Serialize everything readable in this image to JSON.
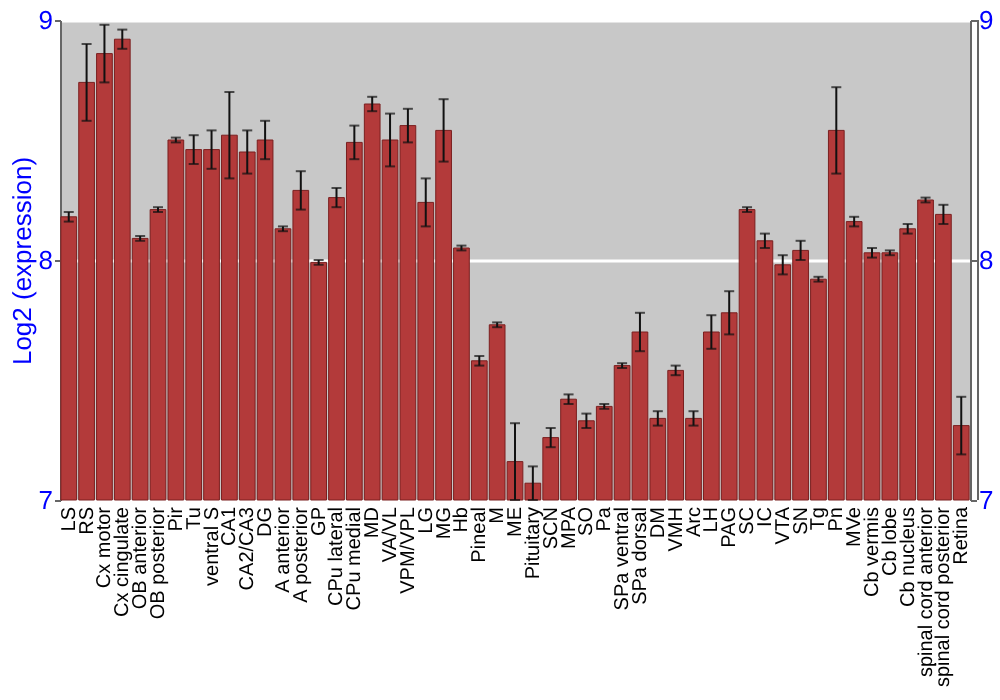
{
  "chart_data": {
    "type": "bar",
    "ylabel": "Log2 (expression)",
    "color": "#b33a3a",
    "categories": [
      "LS",
      "RS",
      "Cx motor",
      "Cx cingulate",
      "OB anterior",
      "OB posterior",
      "Pir",
      "Tu",
      "ventral S",
      "CA1",
      "CA2/CA3",
      "DG",
      "A anterior",
      "A posterior",
      "GP",
      "CPu lateral",
      "CPu medial",
      "MD",
      "VA/VL",
      "VPM/VPL",
      "LG",
      "MG",
      "Hb",
      "Pineal",
      "M",
      "ME",
      "Pituitary",
      "SCN",
      "MPA",
      "SO",
      "Pa",
      "SPa ventral",
      "SPa dorsal",
      "DM",
      "VMH",
      "Arc",
      "LH",
      "PAG",
      "SC",
      "IC",
      "VTA",
      "SN",
      "Tg",
      "Pn",
      "MVe",
      "Cb vermis",
      "Cb lobe",
      "Cb nucleus",
      "spinal cord anterior",
      "spinal cord posterior",
      "Retina"
    ],
    "values": [
      8.18,
      8.74,
      8.86,
      8.92,
      8.09,
      8.21,
      8.5,
      8.46,
      8.46,
      8.52,
      8.45,
      8.5,
      8.13,
      8.29,
      7.99,
      8.26,
      8.49,
      8.65,
      8.5,
      8.56,
      8.24,
      8.54,
      8.05,
      7.58,
      7.73,
      7.16,
      7.07,
      7.26,
      7.42,
      7.33,
      7.39,
      7.56,
      7.7,
      7.34,
      7.54,
      7.34,
      7.7,
      7.78,
      8.21,
      8.08,
      7.98,
      8.04,
      7.92,
      8.54,
      8.16,
      8.03,
      8.03,
      8.13,
      8.25,
      8.19,
      7.31
    ],
    "errors": [
      0.02,
      0.16,
      0.12,
      0.04,
      0.01,
      0.01,
      0.01,
      0.06,
      0.08,
      0.18,
      0.09,
      0.08,
      0.01,
      0.08,
      0.01,
      0.04,
      0.07,
      0.03,
      0.11,
      0.07,
      0.1,
      0.13,
      0.01,
      0.02,
      0.01,
      0.16,
      0.07,
      0.04,
      0.02,
      0.03,
      0.01,
      0.01,
      0.08,
      0.03,
      0.02,
      0.03,
      0.07,
      0.09,
      0.01,
      0.03,
      0.04,
      0.04,
      0.01,
      0.18,
      0.02,
      0.02,
      0.01,
      0.02,
      0.01,
      0.04,
      0.12
    ],
    "ylim": [
      7,
      9
    ],
    "yticks": [
      7,
      8,
      9
    ],
    "y2lim": [
      7,
      9
    ],
    "y2ticks": [
      7,
      8,
      9
    ],
    "grid": "y"
  }
}
